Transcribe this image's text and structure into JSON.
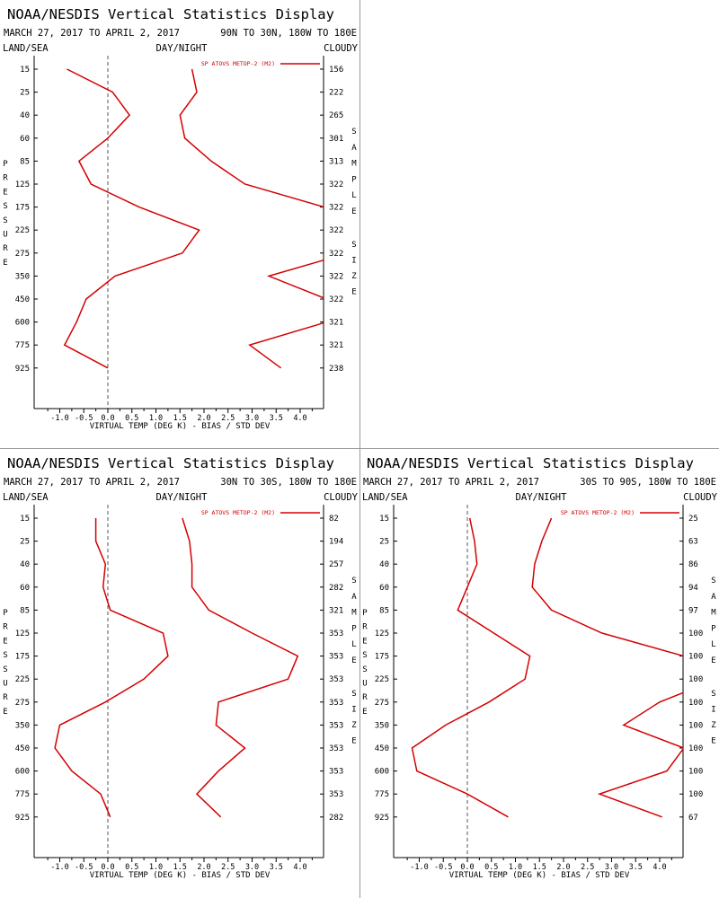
{
  "header": {
    "title": "NOAA/NESDIS Vertical Statistics Display",
    "dates": "MARCH 27, 2017 TO APRIL 2, 2017",
    "left_label": "LAND/SEA",
    "mid_label": "DAY/NIGHT",
    "right_label": "CLOUDY"
  },
  "side_labels": {
    "pressure": "PRESSURE",
    "sample": "SAMPLE",
    "size": "SIZE"
  },
  "chart_data": [
    {
      "type": "line",
      "region": "90N TO 30N, 180W TO 180E",
      "legend": "SP ATOVS METOP-2 (M2)",
      "xlabel": "VIRTUAL TEMP (DEG K) - BIAS / STD DEV",
      "xlim": [
        -1.5,
        4.5
      ],
      "x_ticks": [
        "-1.0",
        "-0.5",
        "0.0",
        "0.5",
        "1.0",
        "1.5",
        "2.0",
        "2.5",
        "3.0",
        "3.5",
        "4.0"
      ],
      "pressure_levels": [
        "15",
        "25",
        "40",
        "60",
        "85",
        "125",
        "175",
        "225",
        "275",
        "350",
        "450",
        "600",
        "775",
        "925"
      ],
      "sample_size": [
        "156",
        "222",
        "265",
        "301",
        "313",
        "322",
        "322",
        "322",
        "322",
        "322",
        "322",
        "321",
        "321",
        "238"
      ],
      "series": [
        {
          "key": "bias",
          "values": [
            -0.85,
            0.1,
            0.45,
            0.0,
            -0.6,
            -0.35,
            0.65,
            1.9,
            1.55,
            0.15,
            -0.45,
            -0.65,
            -0.9,
            0.0
          ]
        },
        {
          "key": "std_dev",
          "values": [
            1.75,
            1.85,
            1.5,
            1.6,
            2.15,
            2.85,
            4.5,
            5.2,
            5.0,
            3.35,
            4.55,
            4.55,
            2.95,
            3.6
          ]
        }
      ]
    },
    {
      "type": "line",
      "region": "30N TO 30S, 180W TO 180E",
      "legend": "SP ATOVS METOP-2 (M2)",
      "xlabel": "VIRTUAL TEMP (DEG K) - BIAS / STD DEV",
      "xlim": [
        -1.5,
        4.5
      ],
      "x_ticks": [
        "-1.0",
        "-0.5",
        "0.0",
        "0.5",
        "1.0",
        "1.5",
        "2.0",
        "2.5",
        "3.0",
        "3.5",
        "4.0"
      ],
      "pressure_levels": [
        "15",
        "25",
        "40",
        "60",
        "85",
        "125",
        "175",
        "225",
        "275",
        "350",
        "450",
        "600",
        "775",
        "925"
      ],
      "sample_size": [
        "82",
        "194",
        "257",
        "282",
        "321",
        "353",
        "353",
        "353",
        "353",
        "353",
        "353",
        "353",
        "353",
        "282"
      ],
      "series": [
        {
          "key": "bias",
          "values": [
            -0.25,
            -0.25,
            -0.05,
            -0.1,
            0.05,
            1.15,
            1.25,
            0.75,
            -0.05,
            -1.0,
            -1.1,
            -0.75,
            -0.15,
            0.05
          ]
        },
        {
          "key": "std_dev",
          "values": [
            1.55,
            1.7,
            1.75,
            1.75,
            2.1,
            3.0,
            3.95,
            3.75,
            2.3,
            2.25,
            2.85,
            2.3,
            1.85,
            2.35
          ]
        }
      ]
    },
    {
      "type": "line",
      "region": "30S TO 90S, 180W TO 180E",
      "legend": "SP ATOVS METOP-2 (M2)",
      "xlabel": "VIRTUAL TEMP (DEG K) - BIAS / STD DEV",
      "xlim": [
        -1.5,
        4.5
      ],
      "x_ticks": [
        "-1.0",
        "-0.5",
        "0.0",
        "0.5",
        "1.0",
        "1.5",
        "2.0",
        "2.5",
        "3.0",
        "3.5",
        "4.0"
      ],
      "pressure_levels": [
        "15",
        "25",
        "40",
        "60",
        "85",
        "125",
        "175",
        "225",
        "275",
        "350",
        "450",
        "600",
        "775",
        "925"
      ],
      "sample_size": [
        "25",
        "63",
        "86",
        "94",
        "97",
        "100",
        "100",
        "100",
        "100",
        "100",
        "100",
        "100",
        "100",
        "67"
      ],
      "series": [
        {
          "key": "bias",
          "values": [
            0.05,
            0.15,
            0.2,
            0.0,
            -0.2,
            0.55,
            1.3,
            1.2,
            0.45,
            -0.45,
            -1.15,
            -1.05,
            0.0,
            0.85
          ]
        },
        {
          "key": "std_dev",
          "values": [
            1.75,
            1.55,
            1.4,
            1.35,
            1.75,
            2.8,
            4.5,
            5.2,
            4.0,
            3.25,
            4.5,
            4.15,
            2.75,
            4.05
          ]
        }
      ]
    }
  ],
  "colors": {
    "line": "#d40000",
    "axis": "#000000",
    "zero_line": "#555555"
  }
}
